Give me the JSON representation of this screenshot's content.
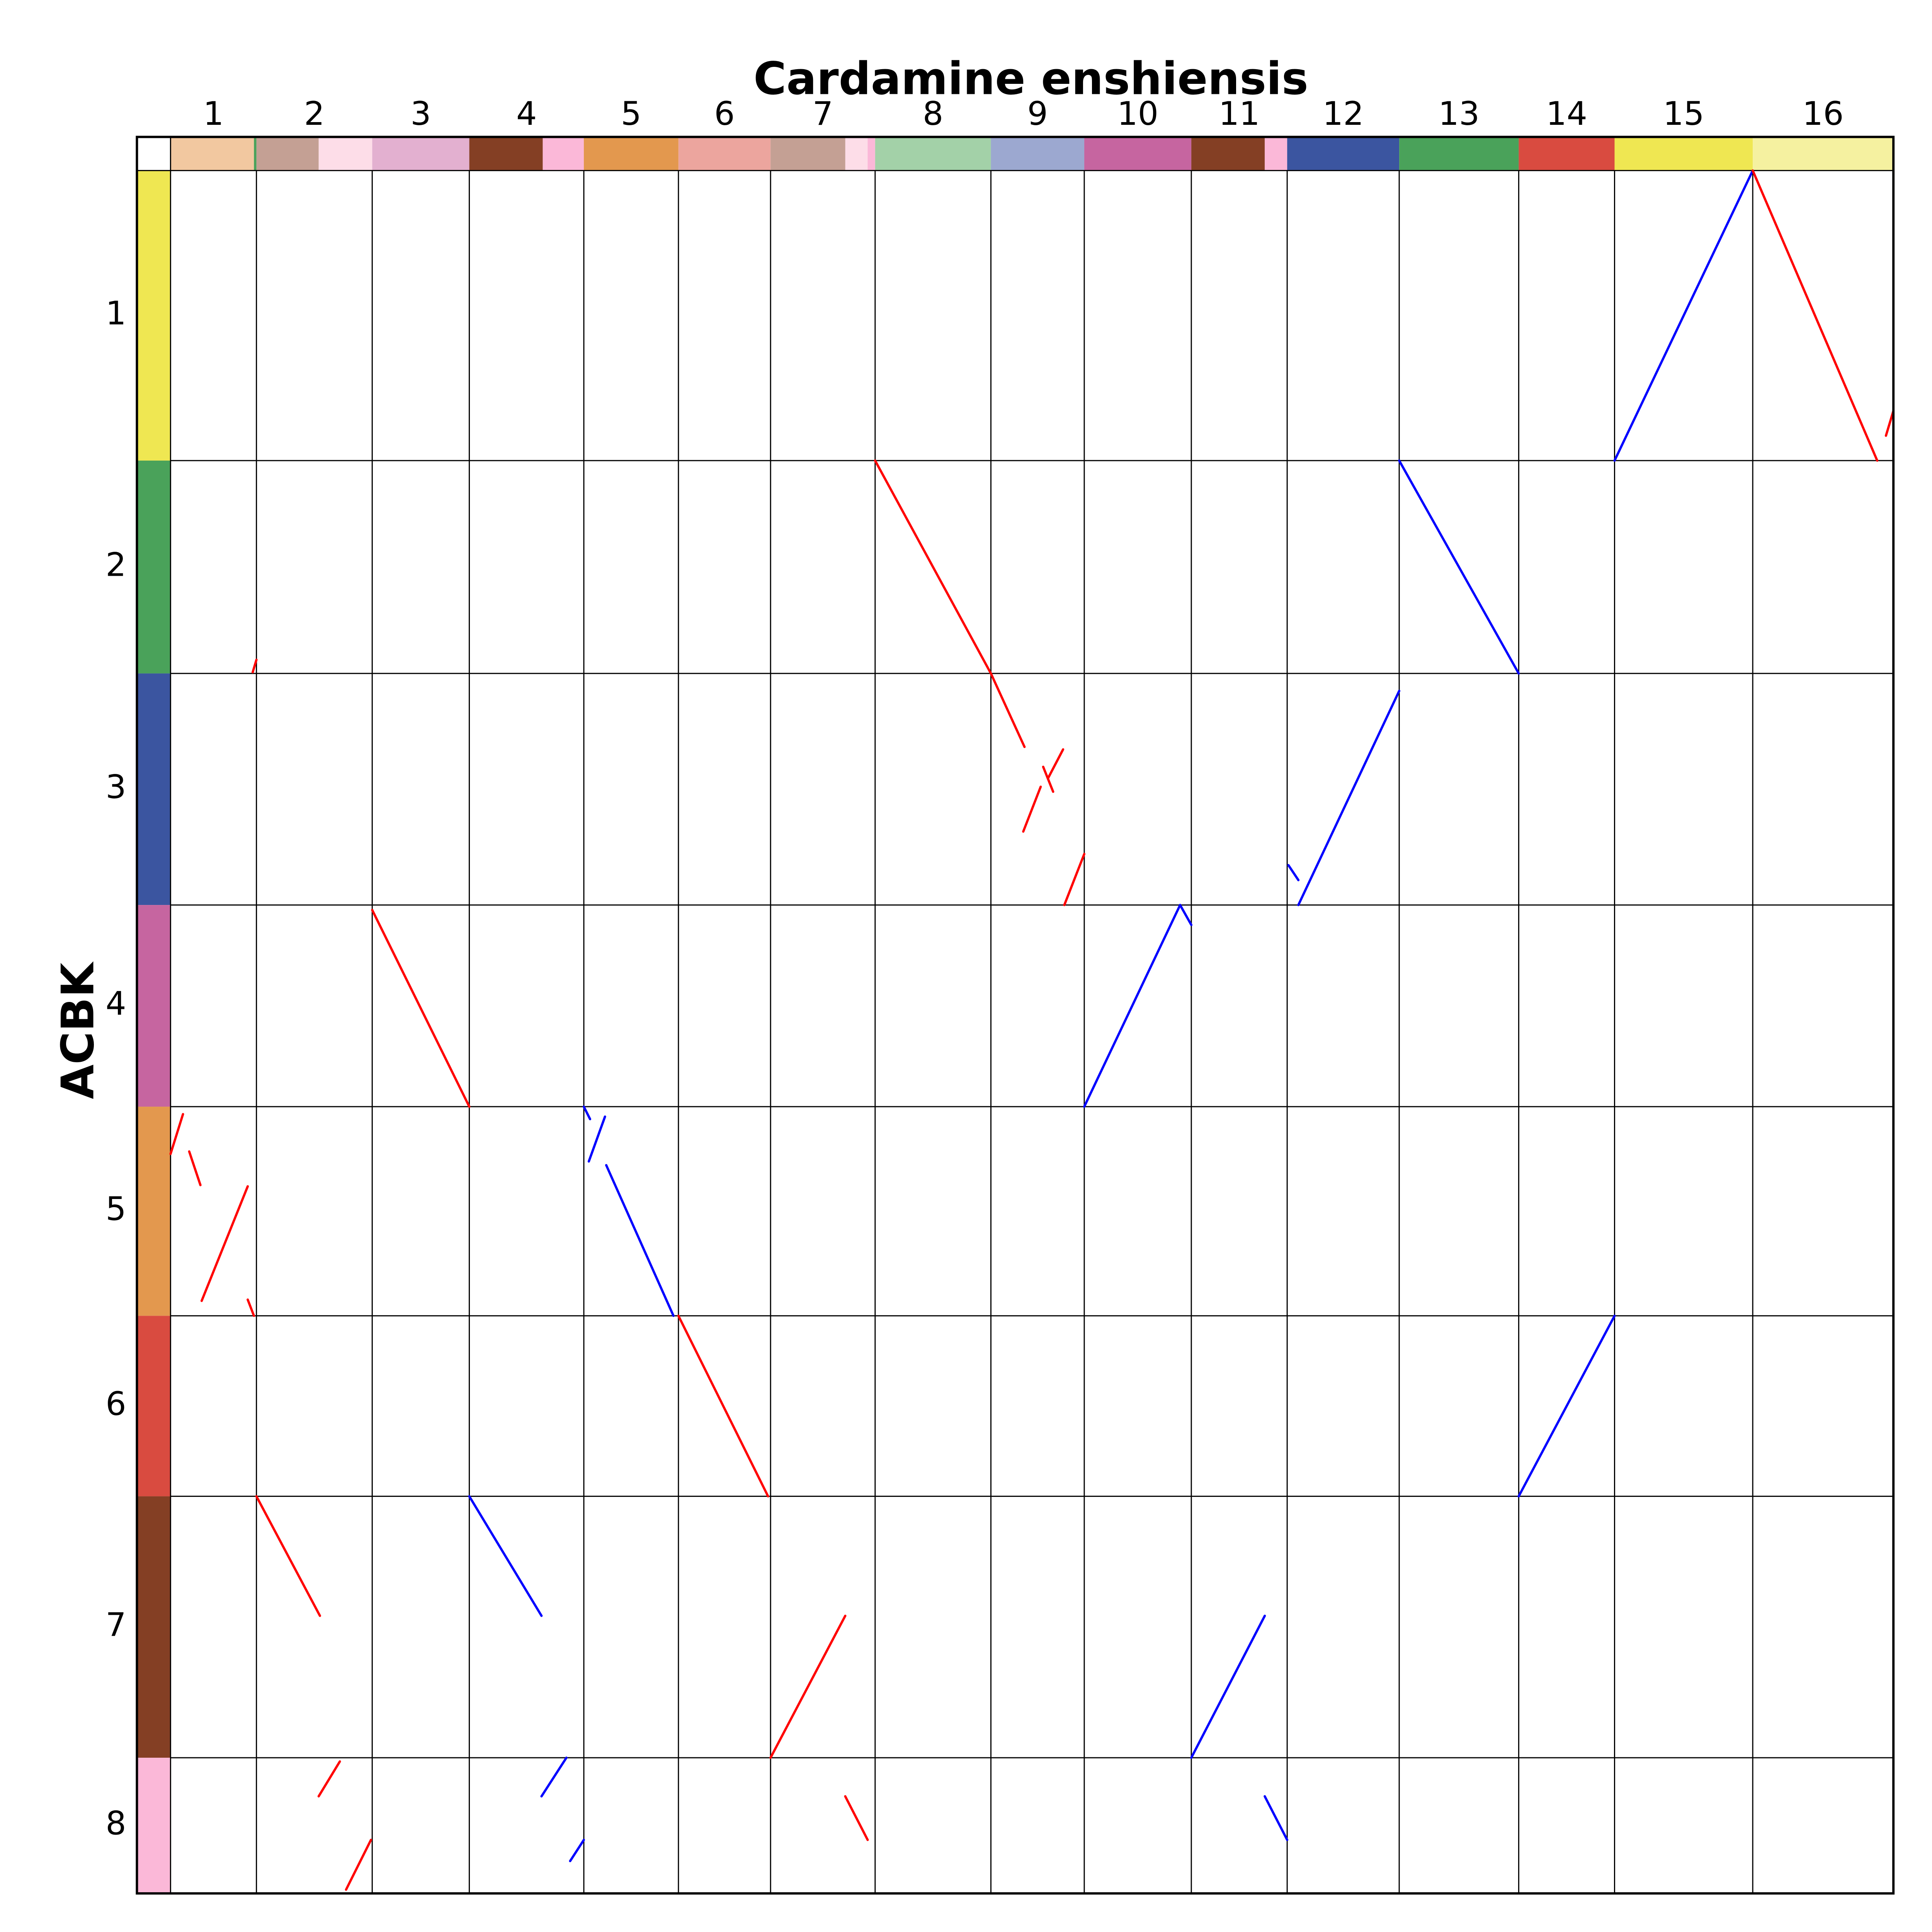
{
  "chart_data": {
    "type": "dotplot",
    "title": "Cardamine enshiensis",
    "ylabel": "ACBK",
    "x_categories": [
      "1",
      "2",
      "3",
      "4",
      "5",
      "6",
      "7",
      "8",
      "9",
      "10",
      "11",
      "12",
      "13",
      "14",
      "15",
      "16"
    ],
    "y_categories": [
      "1",
      "2",
      "3",
      "4",
      "5",
      "6",
      "7",
      "8"
    ],
    "x_lengths": [
      69,
      93,
      78,
      92,
      76,
      74,
      84,
      93,
      75,
      86,
      77,
      90,
      96,
      77,
      111,
      113
    ],
    "y_lengths": [
      233,
      171,
      186,
      162,
      168,
      145,
      210,
      109
    ],
    "y_colors": [
      "#efe752",
      "#4aa25a",
      "#3b55a0",
      "#c665a0",
      "#e3984e",
      "#d94b40",
      "#843f24",
      "#fbb8d8"
    ],
    "x_blocks": [
      {
        "start": 0,
        "end": 67,
        "color": "#f2c8a0"
      },
      {
        "start": 67,
        "end": 69,
        "color": "#4aa25a"
      },
      {
        "start": 69,
        "end": 119,
        "color": "#c4a094"
      },
      {
        "start": 119,
        "end": 162,
        "color": "#fddde8"
      },
      {
        "start": 162,
        "end": 240,
        "color": "#e3b0d0"
      },
      {
        "start": 240,
        "end": 299,
        "color": "#843f24"
      },
      {
        "start": 299,
        "end": 332,
        "color": "#fbb8d8"
      },
      {
        "start": 332,
        "end": 408,
        "color": "#e3984e"
      },
      {
        "start": 408,
        "end": 482,
        "color": "#eca59e"
      },
      {
        "start": 482,
        "end": 542,
        "color": "#c4a094"
      },
      {
        "start": 542,
        "end": 560,
        "color": "#fddde8"
      },
      {
        "start": 560,
        "end": 566,
        "color": "#fbb8d8"
      },
      {
        "start": 566,
        "end": 659,
        "color": "#a3d1a8"
      },
      {
        "start": 659,
        "end": 734,
        "color": "#9ca8d0"
      },
      {
        "start": 734,
        "end": 820,
        "color": "#c665a0"
      },
      {
        "start": 820,
        "end": 879,
        "color": "#843f24"
      },
      {
        "start": 879,
        "end": 897,
        "color": "#fbb8d8"
      },
      {
        "start": 897,
        "end": 987,
        "color": "#3b55a0"
      },
      {
        "start": 987,
        "end": 1083,
        "color": "#4aa25a"
      },
      {
        "start": 1083,
        "end": 1160,
        "color": "#d94b40"
      },
      {
        "start": 1160,
        "end": 1271,
        "color": "#efe752"
      },
      {
        "start": 1271,
        "end": 1384,
        "color": "#f5f1a0"
      }
    ],
    "segments": [
      {
        "x": [
          1160,
          1271
        ],
        "y": [
          233,
          0
        ],
        "color": "#0000ff"
      },
      {
        "x": [
          1271,
          1371
        ],
        "y": [
          0,
          233
        ],
        "color": "#ff0000"
      },
      {
        "x": [
          1378,
          1384
        ],
        "y": [
          213,
          193
        ],
        "color": "#ff0000"
      },
      {
        "x": [
          566,
          659
        ],
        "y": [
          233,
          404
        ],
        "color": "#ff0000"
      },
      {
        "x": [
          987,
          1083
        ],
        "y": [
          233,
          404
        ],
        "color": "#0000ff"
      },
      {
        "x": [
          66,
          69
        ],
        "y": [
          403,
          393
        ],
        "color": "#ff0000"
      },
      {
        "x": [
          659,
          686
        ],
        "y": [
          404,
          463
        ],
        "color": "#ff0000"
      },
      {
        "x": [
          701,
          709
        ],
        "y": [
          479,
          499
        ],
        "color": "#ff0000"
      },
      {
        "x": [
          717,
          705
        ],
        "y": [
          465,
          488
        ],
        "color": "#ff0000"
      },
      {
        "x": [
          699,
          685
        ],
        "y": [
          495,
          531
        ],
        "color": "#ff0000"
      },
      {
        "x": [
          718,
          734
        ],
        "y": [
          590,
          549
        ],
        "color": "#ff0000"
      },
      {
        "x": [
          987,
          906
        ],
        "y": [
          418,
          590
        ],
        "color": "#0000ff"
      },
      {
        "x": [
          898,
          906
        ],
        "y": [
          558,
          570
        ],
        "color": "#0000ff"
      },
      {
        "x": [
          162,
          240
        ],
        "y": [
          594,
          752
        ],
        "color": "#ff0000"
      },
      {
        "x": [
          734,
          811
        ],
        "y": [
          752,
          590
        ],
        "color": "#0000ff"
      },
      {
        "x": [
          811,
          820
        ],
        "y": [
          590,
          606
        ],
        "color": "#0000ff"
      },
      {
        "x": [
          0,
          10
        ],
        "y": [
          790,
          758
        ],
        "color": "#ff0000"
      },
      {
        "x": [
          15,
          24
        ],
        "y": [
          788,
          815
        ],
        "color": "#ff0000"
      },
      {
        "x": [
          62,
          25
        ],
        "y": [
          816,
          908
        ],
        "color": "#ff0000"
      },
      {
        "x": [
          62,
          67
        ],
        "y": [
          907,
          920
        ],
        "color": "#ff0000"
      },
      {
        "x": [
          332,
          337
        ],
        "y": [
          752,
          762
        ],
        "color": "#0000ff"
      },
      {
        "x": [
          336,
          349
        ],
        "y": [
          796,
          760
        ],
        "color": "#0000ff"
      },
      {
        "x": [
          350,
          404
        ],
        "y": [
          799,
          920
        ],
        "color": "#0000ff"
      },
      {
        "x": [
          408,
          480
        ],
        "y": [
          920,
          1065
        ],
        "color": "#ff0000"
      },
      {
        "x": [
          1160,
          1083
        ],
        "y": [
          920,
          1065
        ],
        "color": "#0000ff"
      },
      {
        "x": [
          69,
          120
        ],
        "y": [
          1065,
          1161
        ],
        "color": "#ff0000"
      },
      {
        "x": [
          240,
          298
        ],
        "y": [
          1065,
          1161
        ],
        "color": "#0000ff"
      },
      {
        "x": [
          482,
          542
        ],
        "y": [
          1275,
          1161
        ],
        "color": "#ff0000"
      },
      {
        "x": [
          820,
          879
        ],
        "y": [
          1275,
          1161
        ],
        "color": "#0000ff"
      },
      {
        "x": [
          119,
          136
        ],
        "y": [
          1306,
          1278
        ],
        "color": "#ff0000"
      },
      {
        "x": [
          141,
          161
        ],
        "y": [
          1381,
          1341
        ],
        "color": "#ff0000"
      },
      {
        "x": [
          298,
          318
        ],
        "y": [
          1306,
          1275
        ],
        "color": "#0000ff"
      },
      {
        "x": [
          321,
          332
        ],
        "y": [
          1358,
          1341
        ],
        "color": "#0000ff"
      },
      {
        "x": [
          542,
          560
        ],
        "y": [
          1306,
          1341
        ],
        "color": "#ff0000"
      },
      {
        "x": [
          879,
          897
        ],
        "y": [
          1306,
          1341
        ],
        "color": "#0000ff"
      }
    ]
  }
}
